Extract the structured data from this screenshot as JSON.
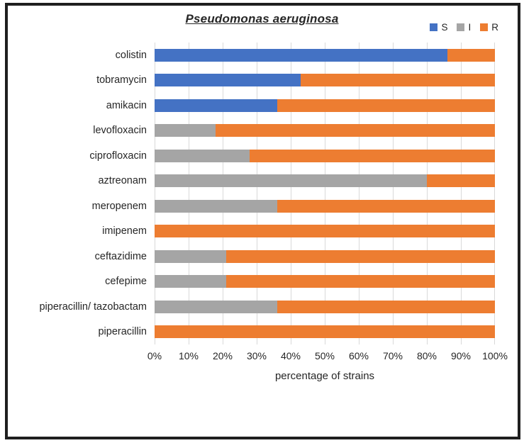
{
  "chart_data": {
    "type": "bar",
    "orientation": "horizontal-stacked",
    "title": "Pseudomonas aeruginosa",
    "xlabel": "percentage of strains",
    "ylabel": "",
    "xlim": [
      0,
      100
    ],
    "grid": true,
    "legend_position": "top-right",
    "x_ticks": [
      "0%",
      "10%",
      "20%",
      "30%",
      "40%",
      "50%",
      "60%",
      "70%",
      "80%",
      "90%",
      "100%"
    ],
    "categories": [
      "colistin",
      "tobramycin",
      "amikacin",
      "levofloxacin",
      "ciprofloxacin",
      "aztreonam",
      "meropenem",
      "imipenem",
      "ceftazidime",
      "cefepime",
      "piperacillin/ tazobactam",
      "piperacillin"
    ],
    "series": [
      {
        "name": "S",
        "color": "#4472C4",
        "values": [
          86,
          43,
          36,
          0,
          0,
          0,
          0,
          0,
          0,
          0,
          0,
          0
        ]
      },
      {
        "name": "I",
        "color": "#A5A5A5",
        "values": [
          0,
          0,
          0,
          18,
          28,
          80,
          36,
          0,
          21,
          21,
          36,
          0
        ]
      },
      {
        "name": "R",
        "color": "#ED7D31",
        "values": [
          14,
          57,
          64,
          82,
          72,
          20,
          64,
          100,
          79,
          79,
          64,
          100
        ]
      }
    ],
    "colors": {
      "grid": "#d9d9d9",
      "frame": "#1f1f1f",
      "text": "#262626"
    }
  }
}
